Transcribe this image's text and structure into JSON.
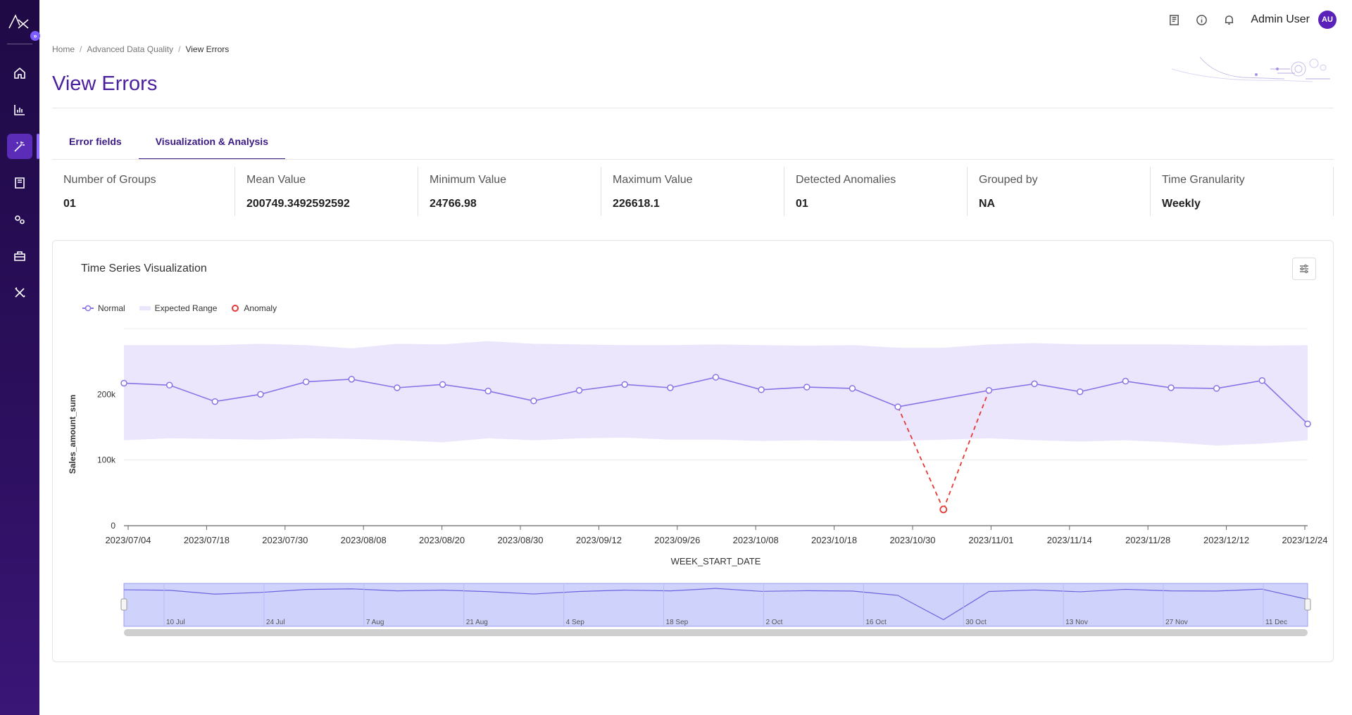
{
  "app": {
    "logo_icon": "ax-logo-icon",
    "collapse_icon": "chevron-double-right-icon"
  },
  "sidebar": {
    "items": [
      {
        "name": "home",
        "icon": "home-icon",
        "active": false
      },
      {
        "name": "analytics",
        "icon": "bar-chart-icon",
        "active": false
      },
      {
        "name": "data-quality",
        "icon": "magic-wand-icon",
        "active": true
      },
      {
        "name": "catalog",
        "icon": "book-icon",
        "active": false
      },
      {
        "name": "settings",
        "icon": "gears-icon",
        "active": false
      },
      {
        "name": "portfolio",
        "icon": "briefcase-icon",
        "active": false
      },
      {
        "name": "tools",
        "icon": "tools-icon",
        "active": false
      }
    ]
  },
  "topbar": {
    "user_name": "Admin User",
    "avatar_initials": "AU"
  },
  "breadcrumb": {
    "home": "Home",
    "section": "Advanced Data Quality",
    "current": "View Errors"
  },
  "page": {
    "title": "View Errors"
  },
  "tabs": [
    {
      "label": "Error fields",
      "active": false
    },
    {
      "label": "Visualization & Analysis",
      "active": true
    }
  ],
  "stats": [
    {
      "label": "Number of Groups",
      "value": "01"
    },
    {
      "label": "Mean Value",
      "value": "200749.3492592592"
    },
    {
      "label": "Minimum Value",
      "value": "24766.98"
    },
    {
      "label": "Maximum Value",
      "value": "226618.1"
    },
    {
      "label": "Detected Anomalies",
      "value": "01"
    },
    {
      "label": "Grouped by",
      "value": "NA"
    },
    {
      "label": "Time Granularity",
      "value": "Weekly"
    }
  ],
  "chart_card": {
    "title": "Time Series Visualization"
  },
  "colors": {
    "accent": "#4b1e9e",
    "normal": "#8a73e6",
    "range": "#ece6fd",
    "anomaly": "#e53935"
  },
  "chart_data": {
    "type": "line",
    "title": "",
    "xlabel": "WEEK_START_DATE",
    "ylabel": "Sales_amount_sum",
    "ylim": [
      0,
      300000
    ],
    "yticks": [
      0,
      100000,
      200000
    ],
    "ytick_labels": [
      "0",
      "100k",
      "200k"
    ],
    "x_tick_labels": [
      "2023/07/04",
      "2023/07/18",
      "2023/07/30",
      "2023/08/08",
      "2023/08/20",
      "2023/08/30",
      "2023/09/12",
      "2023/09/26",
      "2023/10/08",
      "2023/10/18",
      "2023/10/30",
      "2023/11/01",
      "2023/11/14",
      "2023/11/28",
      "2023/12/12",
      "2023/12/24"
    ],
    "legend": {
      "placement": "top-left",
      "entries": [
        "Normal",
        "Expected Range",
        "Anomaly"
      ]
    },
    "series": [
      {
        "name": "Normal",
        "values": [
          217000,
          214000,
          189000,
          200000,
          219000,
          223000,
          210000,
          215000,
          205000,
          190000,
          206000,
          215000,
          210000,
          226000,
          207000,
          211000,
          209000,
          181000,
          null,
          206000,
          216000,
          204000,
          220000,
          210000,
          209000,
          221000,
          155000
        ]
      },
      {
        "name": "Anomaly",
        "values": [
          null,
          null,
          null,
          null,
          null,
          null,
          null,
          null,
          null,
          null,
          null,
          null,
          null,
          null,
          null,
          null,
          null,
          null,
          24766.98,
          null,
          null,
          null,
          null,
          null,
          null,
          null,
          null
        ]
      },
      {
        "name": "Expected Range",
        "upper": [
          275000,
          275000,
          275000,
          277000,
          275000,
          270000,
          277000,
          276000,
          281000,
          277000,
          276000,
          275000,
          275000,
          276000,
          275000,
          274000,
          275000,
          271000,
          271000,
          276000,
          278000,
          276000,
          276000,
          276000,
          275000,
          274000,
          275000
        ],
        "lower": [
          130000,
          133000,
          132000,
          131000,
          133000,
          132000,
          130000,
          127000,
          133000,
          130000,
          133000,
          134000,
          131000,
          131000,
          129000,
          130000,
          129000,
          129000,
          131000,
          133000,
          130000,
          128000,
          130000,
          127000,
          122000,
          125000,
          130000
        ]
      }
    ],
    "navigator": {
      "tick_labels": [
        "10 Jul",
        "24 Jul",
        "7 Aug",
        "21 Aug",
        "4 Sep",
        "18 Sep",
        "2 Oct",
        "16 Oct",
        "30 Oct",
        "13 Nov",
        "27 Nov",
        "11 Dec"
      ],
      "selected_range": "full"
    }
  }
}
